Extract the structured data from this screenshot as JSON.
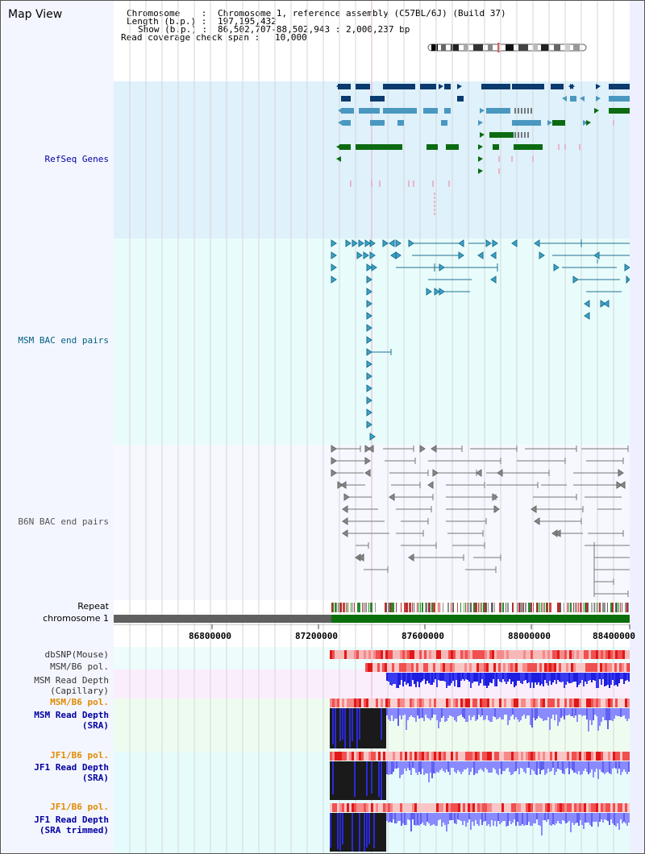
{
  "title": "Map View",
  "info": {
    "chromosome_label": "Chromosome    :",
    "chromosome_value": "Chromosome 1, reference assembly (C57BL/6J) (Build 37)",
    "length_label": "Length (b.p.) :",
    "length_value": "197,195,432",
    "show_label": "Show (b.p.) :",
    "show_value": "86,502,707-88,502,943 : 2,000,237 bp",
    "coverage_label": "Read coverage check span :",
    "coverage_value": "10,000"
  },
  "tracks": {
    "refseq": "RefSeq Genes",
    "msm_bac": "MSM BAC end pairs",
    "b6n_bac": "B6N BAC end pairs",
    "repeat": "Repeat",
    "chromosome": "chromosome 1",
    "dbsnp": "dbSNP(Mouse)",
    "msm_b6_pol_1": "MSM/B6 pol.",
    "msm_depth_cap_1": "MSM Read Depth",
    "msm_depth_cap_2": "(Capillary)",
    "msm_b6_pol_2": "MSM/B6 pol.",
    "msm_depth_sra_1": "MSM Read Depth",
    "msm_depth_sra_2": "(SRA)",
    "jf1_b6_pol_1": "JF1/B6 pol.",
    "jf1_depth_sra_1": "JF1 Read Depth",
    "jf1_depth_sra_2": "(SRA)",
    "jf1_b6_pol_2": "JF1/B6 pol.",
    "jf1_depth_trim_1": "JF1 Read Depth",
    "jf1_depth_trim_2": "(SRA trimmed)"
  },
  "ruler": {
    "ticks": [
      "86800000",
      "87200000",
      "87600000",
      "88000000",
      "88400000"
    ]
  },
  "colors": {
    "refseq_bg": "#dff1fb",
    "msm_bac_bg": "#e8fcfc",
    "b6n_bac_bg": "#f6f7ff",
    "gene_navy": "#0b3a6e",
    "gene_teal": "#4a98c0",
    "gene_green": "#0c6b12",
    "bac_teal": "#1f6f8f",
    "bac_grey": "#666666",
    "depth_blue": "#2a2ad8",
    "depth_light": "#8080ff",
    "label_navy": "#0000a0",
    "label_orange": "#e08a00",
    "label_teal": "#006080"
  }
}
